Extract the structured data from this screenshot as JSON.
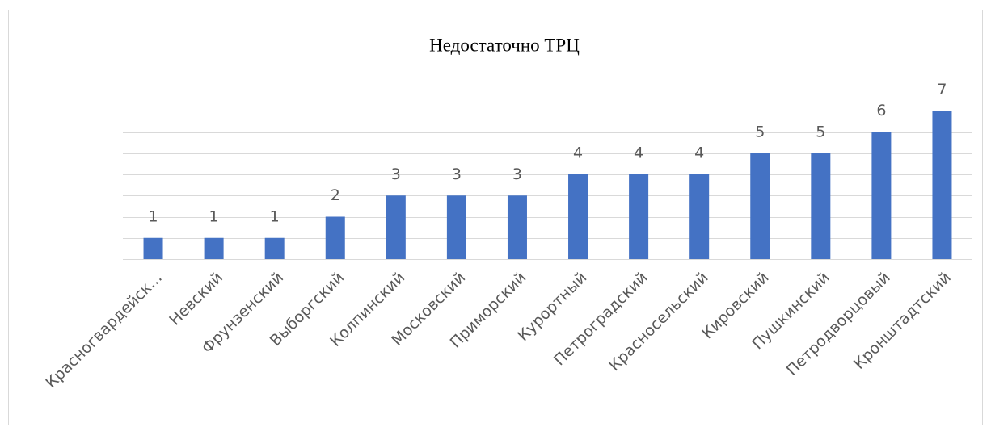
{
  "chart_data": {
    "type": "bar",
    "title": "Недостаточно ТРЦ",
    "categories": [
      "Красногвардейск...",
      "Невский",
      "Фрунзенский",
      "Выборгский",
      "Колпинский",
      "Московский",
      "Приморский",
      "Курортный",
      "Петроградский",
      "Красносельский",
      "Кировский",
      "Пушкинский",
      "Петродворцовый",
      "Кронштадтский"
    ],
    "values": [
      1,
      1,
      1,
      2,
      3,
      3,
      3,
      4,
      4,
      4,
      5,
      5,
      6,
      7
    ],
    "color": "#4472c4",
    "ylim": [
      0,
      8
    ],
    "yticks": [
      0,
      1,
      2,
      3,
      4,
      5,
      6,
      7,
      8
    ],
    "grid": true
  }
}
